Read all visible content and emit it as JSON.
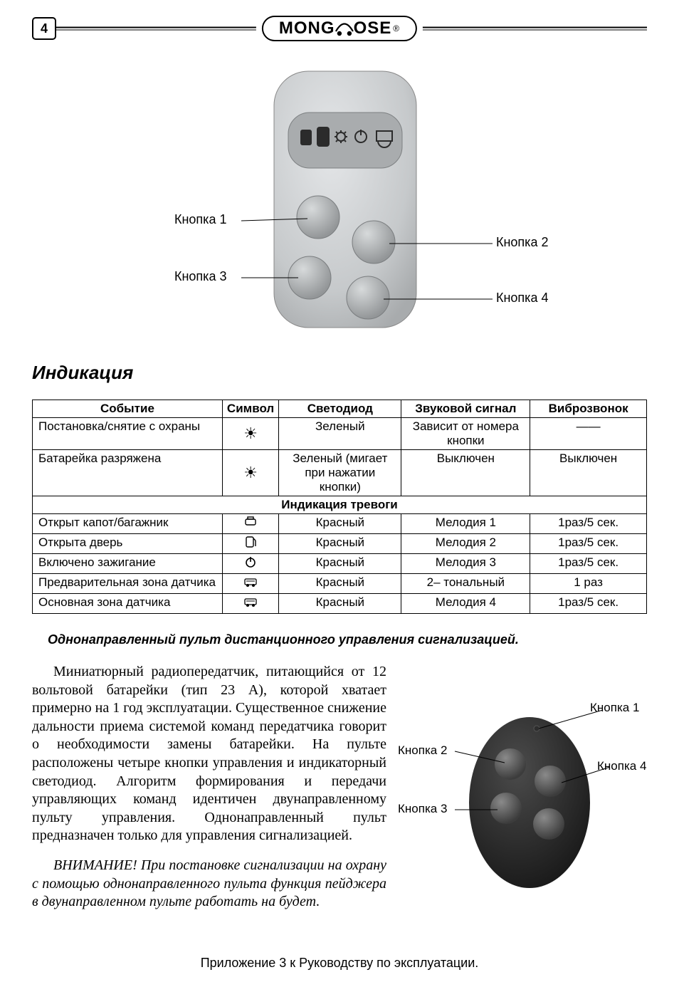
{
  "page_number": "4",
  "brand": "MONGOOSE",
  "remote1": {
    "btn1": "Кнопка 1",
    "btn2": "Кнопка 2",
    "btn3": "Кнопка 3",
    "btn4": "Кнопка 4"
  },
  "section_title": "Индикация",
  "table": {
    "headers": [
      "Событие",
      "Символ",
      "Светодиод",
      "Звуковой сигнал",
      "Виброзвонок"
    ],
    "col_widths_pct": [
      31,
      9,
      20,
      21,
      19
    ],
    "rows": [
      {
        "event": "Постановка/снятие с охраны",
        "symbol": "☼",
        "led": "Зеленый",
        "sound": "Зависит от номера кнопки",
        "vibe": "——"
      },
      {
        "event": "Батарейка разряжена",
        "symbol": "☼",
        "led": "Зеленый (мигает при нажатии кнопки)",
        "sound": "Выключен",
        "vibe": "Выключен"
      }
    ],
    "midheader": "Индикация тревоги",
    "rows2": [
      {
        "event": "Открыт капот/багажник",
        "symbol": "trunk",
        "led": "Красный",
        "sound": "Мелодия 1",
        "vibe": "1раз/5 сек."
      },
      {
        "event": "Открыта дверь",
        "symbol": "door",
        "led": "Красный",
        "sound": "Мелодия 2",
        "vibe": "1раз/5 сек."
      },
      {
        "event": "Включено зажигание",
        "symbol": "power",
        "led": "Красный",
        "sound": "Мелодия 3",
        "vibe": "1раз/5 сек."
      },
      {
        "event": "Предварительная зона датчика",
        "symbol": "sensor",
        "led": "Красный",
        "sound": "2– тональный",
        "vibe": "1 раз"
      },
      {
        "event": "Основная зона датчика",
        "symbol": "sensor",
        "led": "Красный",
        "sound": "Мелодия 4",
        "vibe": "1раз/5 сек."
      }
    ]
  },
  "subheading": "Однонаправленный пульт дистанционного управления сигнализацией.",
  "paragraph1": "Миниатюрный радиопередатчик, питающийся от 12 вольтовой батарейки (тип 23 А), которой хватает примерно на 1 год эксплуатации. Существенное снижение дальности приема системой команд передатчика говорит о необходимости замены батарейки. На пульте расположены четыре кнопки управления и индикаторный светодиод. Алгоритм формирования и передачи управляющих команд идентичен двунаправленному пульту управления. Однонаправленный пульт предназначен только для управления сигнализацией.",
  "paragraph2": "ВНИМАНИЕ! При постановке сигнализации на охрану с помощью однонаправленного пульта функция пейджера в двунаправленном пульте работать на будет.",
  "remote2": {
    "btn1": "Кнопка 1",
    "btn2": "Кнопка 2",
    "btn3": "Кнопка 3",
    "btn4": "Кнопка 4"
  },
  "footer": "Приложение 3 к Руководству по эксплуатации.",
  "colors": {
    "remote_body": "#c9ccce",
    "remote_shadow": "#8f9294",
    "remote_button": "#b3b6b8",
    "remote2_body": "#2a2a2a",
    "remote2_button": "#606060"
  }
}
